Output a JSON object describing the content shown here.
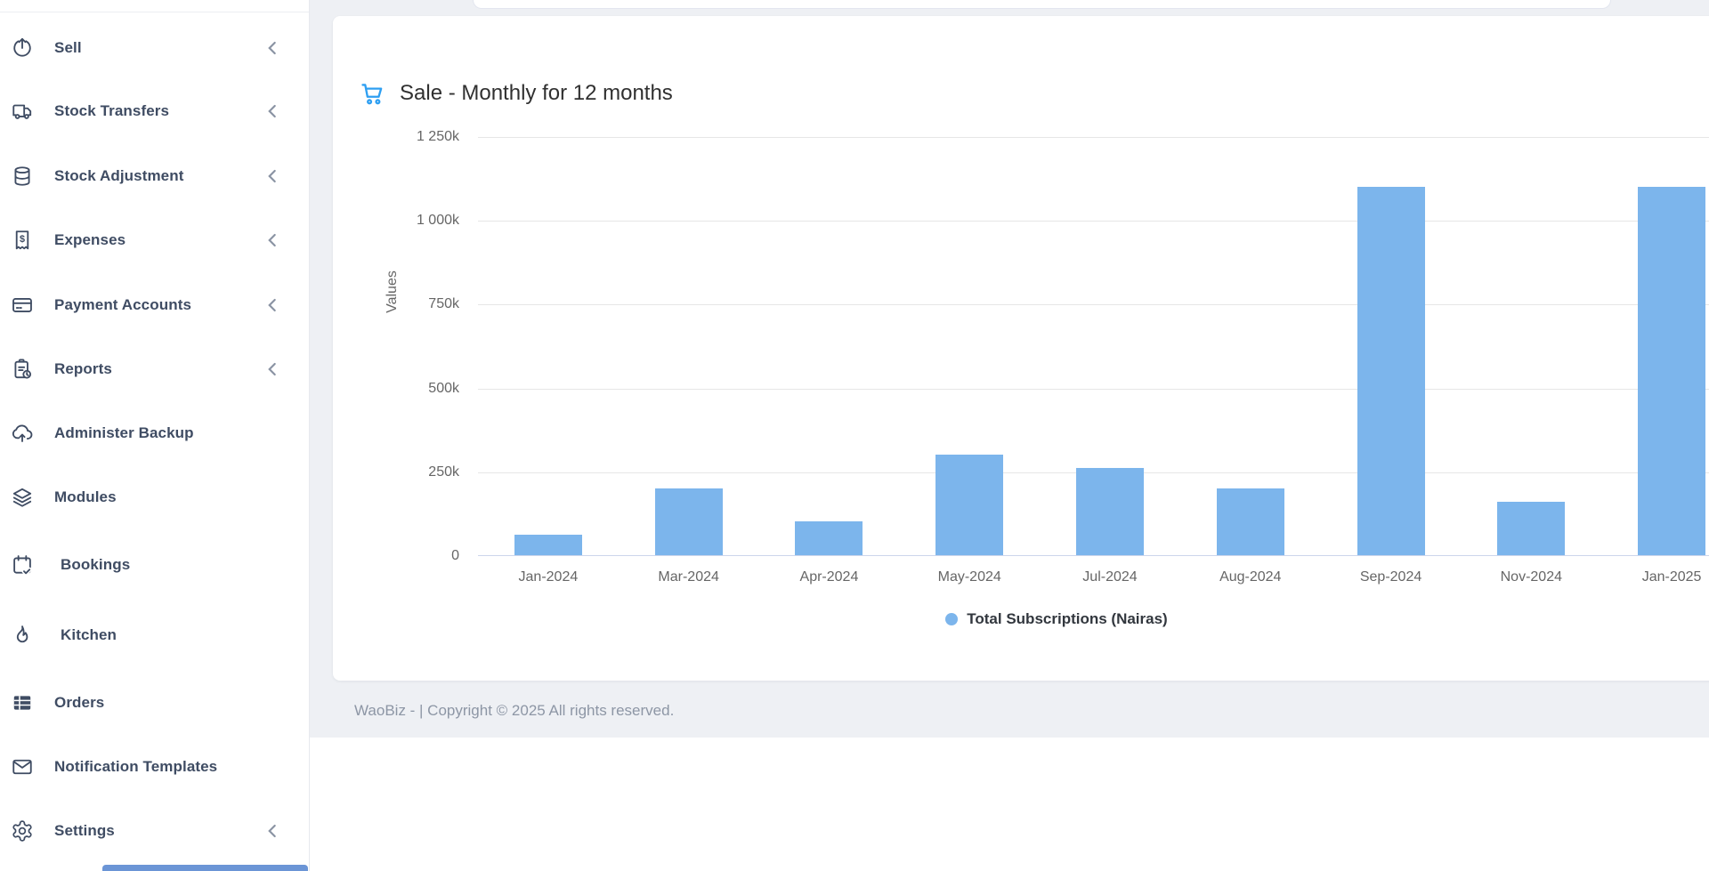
{
  "sidebar": {
    "items": [
      {
        "label": "Sell",
        "icon": "share-upload-icon",
        "chevron": true
      },
      {
        "label": "Stock Transfers",
        "icon": "truck-icon",
        "chevron": true
      },
      {
        "label": "Stock Adjustment",
        "icon": "database-icon",
        "chevron": true
      },
      {
        "label": "Expenses",
        "icon": "receipt-dollar-icon",
        "chevron": true
      },
      {
        "label": "Payment Accounts",
        "icon": "credit-card-icon",
        "chevron": true
      },
      {
        "label": "Reports",
        "icon": "clipboard-clock-icon",
        "chevron": true
      },
      {
        "label": "Administer Backup",
        "icon": "cloud-upload-icon",
        "chevron": false
      },
      {
        "label": "Modules",
        "icon": "layers-icon",
        "chevron": false
      },
      {
        "label": "Bookings",
        "icon": "calendar-check-icon",
        "chevron": false
      },
      {
        "label": "Kitchen",
        "icon": "flame-icon",
        "chevron": false
      },
      {
        "label": "Orders",
        "icon": "table-icon",
        "chevron": false
      },
      {
        "label": "Notification Templates",
        "icon": "envelope-icon",
        "chevron": false
      },
      {
        "label": "Settings",
        "icon": "gear-icon",
        "chevron": true
      }
    ]
  },
  "chart_data": {
    "type": "bar",
    "title": "Sale - Monthly for 12 months",
    "categories": [
      "Jan-2024",
      "Mar-2024",
      "Apr-2024",
      "May-2024",
      "Jul-2024",
      "Aug-2024",
      "Sep-2024",
      "Nov-2024",
      "Jan-2025"
    ],
    "series": [
      {
        "name": "Total Subscriptions (Nairas)",
        "values": [
          60000,
          200000,
          100000,
          300000,
          260000,
          200000,
          1100000,
          160000,
          1100000
        ]
      }
    ],
    "xlabel": "",
    "ylabel": "Values",
    "ylim": [
      0,
      1250000
    ],
    "y_tick_values": [
      0,
      250000,
      500000,
      750000,
      1000000,
      1250000
    ],
    "y_tick_labels": [
      "0",
      "250k",
      "500k",
      "750k",
      "1 000k",
      "1 250k"
    ],
    "grid": true,
    "legend": "Total Subscriptions (Nairas)",
    "legend_position": "bottom",
    "bar_color": "#7cb5ec"
  },
  "footer": {
    "text": "WaoBiz - | Copyright © 2025 All rights reserved."
  },
  "colors": {
    "accent_blue": "#2e9ff2",
    "bar": "#7cb5ec",
    "sidebar_text": "#3f4c63",
    "main_bg": "#eef0f4",
    "muted_text": "#666666"
  }
}
